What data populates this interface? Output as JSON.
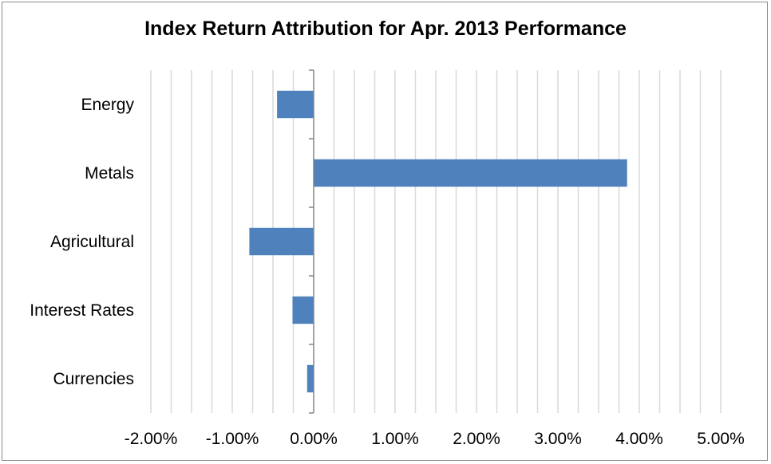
{
  "chart_data": {
    "type": "bar",
    "orientation": "horizontal",
    "title": "Index Return Attribution for Apr. 2013 Performance",
    "categories": [
      "Energy",
      "Metals",
      "Agricultural",
      "Interest Rates",
      "Currencies"
    ],
    "values": [
      -0.45,
      3.85,
      -0.79,
      -0.26,
      -0.08
    ],
    "x_ticks": [
      "-2.00%",
      "-1.00%",
      "0.00%",
      "1.00%",
      "2.00%",
      "3.00%",
      "4.00%",
      "5.00%"
    ],
    "xlim": [
      -2.0,
      5.0
    ],
    "minor_grid_step": 0.25,
    "grid": true,
    "legend": "none",
    "bar_color": "#4f81bd",
    "grid_color": "#d9d9d9",
    "axis_color": "#868686"
  }
}
